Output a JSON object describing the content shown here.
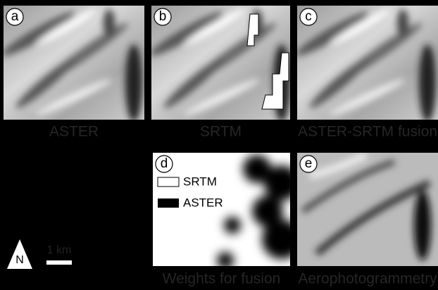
{
  "panels": [
    {
      "letter": "a",
      "caption": "ASTER"
    },
    {
      "letter": "b",
      "caption": "SRTM"
    },
    {
      "letter": "c",
      "caption": "ASTER-SRTM fusion"
    },
    {
      "letter": "d",
      "caption": "Weights for fusion"
    },
    {
      "letter": "e",
      "caption": "Aerophotogrammetry"
    }
  ],
  "legend": [
    "SRTM",
    "ASTER"
  ],
  "north": "N",
  "scale": "1 km"
}
